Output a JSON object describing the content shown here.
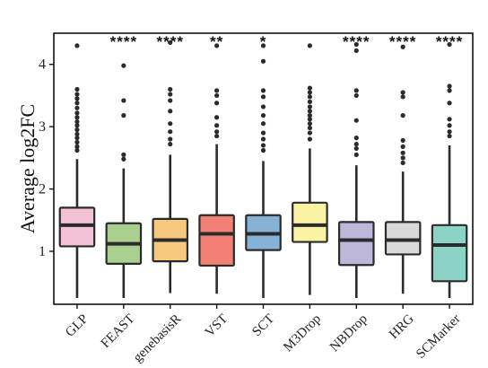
{
  "chart_data": {
    "type": "box",
    "title": "",
    "xlabel": "",
    "ylabel": "Average log2FC",
    "ylim": [
      0.15,
      4.5
    ],
    "yticks": [
      1,
      2,
      3,
      4
    ],
    "grid": false,
    "categories": [
      "GLP",
      "FEAST",
      "genebasisR",
      "VST",
      "SCT",
      "M3Drop",
      "NBDrop",
      "HRG",
      "SCMarker"
    ],
    "significance": [
      "",
      "****",
      "****",
      "**",
      "*",
      "",
      "****",
      "****",
      "****"
    ],
    "boxes": [
      {
        "name": "GLP",
        "color": "#f4c2d7",
        "whisker_low": 0.25,
        "q1": 1.08,
        "median": 1.42,
        "q3": 1.7,
        "whisker_high": 2.48,
        "outliers": [
          2.62,
          2.68,
          2.75,
          2.82,
          2.88,
          2.95,
          3.02,
          3.08,
          3.15,
          3.22,
          3.3,
          3.38,
          3.45,
          3.52,
          3.6,
          4.3
        ]
      },
      {
        "name": "FEAST",
        "color": "#a9d08e",
        "whisker_low": 0.25,
        "q1": 0.8,
        "median": 1.12,
        "q3": 1.45,
        "whisker_high": 2.33,
        "outliers": [
          2.48,
          2.55,
          3.18,
          3.42,
          3.98
        ]
      },
      {
        "name": "genebasisR",
        "color": "#f7c97e",
        "whisker_low": 0.33,
        "q1": 0.84,
        "median": 1.18,
        "q3": 1.52,
        "whisker_high": 2.55,
        "outliers": [
          2.72,
          2.8,
          2.92,
          3.05,
          3.25,
          3.42,
          3.52,
          3.6,
          4.35
        ]
      },
      {
        "name": "VST",
        "color": "#f28074",
        "whisker_low": 0.32,
        "q1": 0.77,
        "median": 1.28,
        "q3": 1.58,
        "whisker_high": 2.72,
        "outliers": [
          2.85,
          2.92,
          3.02,
          3.15,
          3.38,
          3.5,
          3.58,
          4.3
        ]
      },
      {
        "name": "SCT",
        "color": "#86b2d6",
        "whisker_low": 0.25,
        "q1": 1.02,
        "median": 1.28,
        "q3": 1.58,
        "whisker_high": 2.45,
        "outliers": [
          2.62,
          2.7,
          2.8,
          2.9,
          3.05,
          3.18,
          3.32,
          3.48,
          3.58,
          4.05,
          4.3
        ]
      },
      {
        "name": "M3Drop",
        "color": "#f9f3a3",
        "whisker_low": 0.3,
        "q1": 1.15,
        "median": 1.42,
        "q3": 1.78,
        "whisker_high": 2.65,
        "outliers": [
          2.8,
          2.9,
          2.98,
          3.05,
          3.12,
          3.18,
          3.25,
          3.32,
          3.4,
          3.48,
          3.55,
          3.62,
          4.3
        ]
      },
      {
        "name": "NBDrop",
        "color": "#bdb7da",
        "whisker_low": 0.25,
        "q1": 0.78,
        "median": 1.18,
        "q3": 1.47,
        "whisker_high": 2.38,
        "outliers": [
          2.55,
          2.65,
          2.72,
          2.82,
          3.1,
          3.5,
          3.58,
          4.22,
          4.32
        ]
      },
      {
        "name": "HRG",
        "color": "#d9d9d9",
        "whisker_low": 0.32,
        "q1": 0.95,
        "median": 1.18,
        "q3": 1.47,
        "whisker_high": 2.28,
        "outliers": [
          2.42,
          2.5,
          2.58,
          2.68,
          2.78,
          3.18,
          3.48,
          3.55,
          4.28
        ]
      },
      {
        "name": "SCMarker",
        "color": "#8bd3c4",
        "whisker_low": 0.25,
        "q1": 0.52,
        "median": 1.1,
        "q3": 1.42,
        "whisker_high": 2.7,
        "outliers": [
          2.85,
          2.92,
          3.02,
          3.12,
          3.38,
          3.58,
          3.65,
          4.32
        ]
      }
    ]
  }
}
